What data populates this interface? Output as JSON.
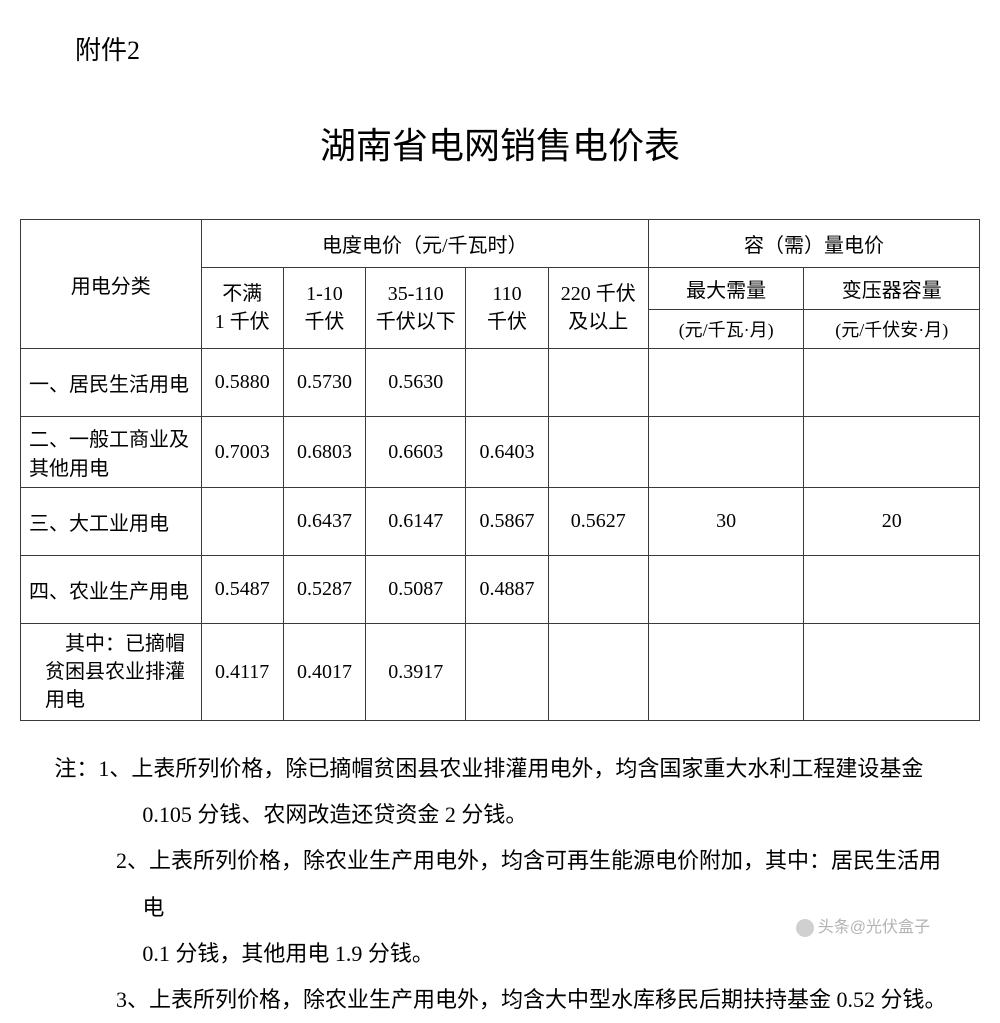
{
  "attachment_label": "附件2",
  "title": "湖南省电网销售电价表",
  "table": {
    "header": {
      "category": "用电分类",
      "energy_price_group": "电度电价（元/千瓦时）",
      "capacity_price_group": "容（需）量电价",
      "voltage_levels": {
        "v1": "不满\n1 千伏",
        "v2": "1-10\n千伏",
        "v3": "35-110\n千伏以下",
        "v4": "110\n千伏",
        "v5": "220 千伏\n及以上"
      },
      "max_demand": "最大需量",
      "max_demand_unit": "(元/千瓦·月)",
      "transformer": "变压器容量",
      "transformer_unit": "(元/千伏安·月)"
    },
    "rows": [
      {
        "category": "一、居民生活用电",
        "v1": "0.5880",
        "v2": "0.5730",
        "v3": "0.5630",
        "v4": "",
        "v5": "",
        "max": "",
        "trans": ""
      },
      {
        "category": "二、一般工商业及其他用电",
        "v1": "0.7003",
        "v2": "0.6803",
        "v3": "0.6603",
        "v4": "0.6403",
        "v5": "",
        "max": "",
        "trans": ""
      },
      {
        "category": "三、大工业用电",
        "v1": "",
        "v2": "0.6437",
        "v3": "0.6147",
        "v4": "0.5867",
        "v5": "0.5627",
        "max": "30",
        "trans": "20"
      },
      {
        "category": "四、农业生产用电",
        "v1": "0.5487",
        "v2": "0.5287",
        "v3": "0.5087",
        "v4": "0.4887",
        "v5": "",
        "max": "",
        "trans": ""
      },
      {
        "category": "　其中：已摘帽贫困县农业排灌用电",
        "v1": "0.4117",
        "v2": "0.4017",
        "v3": "0.3917",
        "v4": "",
        "v5": "",
        "max": "",
        "trans": ""
      }
    ]
  },
  "notes": {
    "prefix": "注：",
    "line1a": "1、上表所列价格，除已摘帽贫困县农业排灌用电外，均含国家重大水利工程建设基金",
    "line1b": "0.105 分钱、农网改造还贷资金 2 分钱。",
    "line2a": "2、上表所列价格，除农业生产用电外，均含可再生能源电价附加，其中：居民生活用电",
    "line2b": "0.1 分钱，其他用电 1.9 分钱。",
    "line3a": "3、上表所列价格，除农业生产用电外，均含大中型水库移民后期扶持基金 0.52 分钱。"
  },
  "watermark": "头条@光伏盒子"
}
